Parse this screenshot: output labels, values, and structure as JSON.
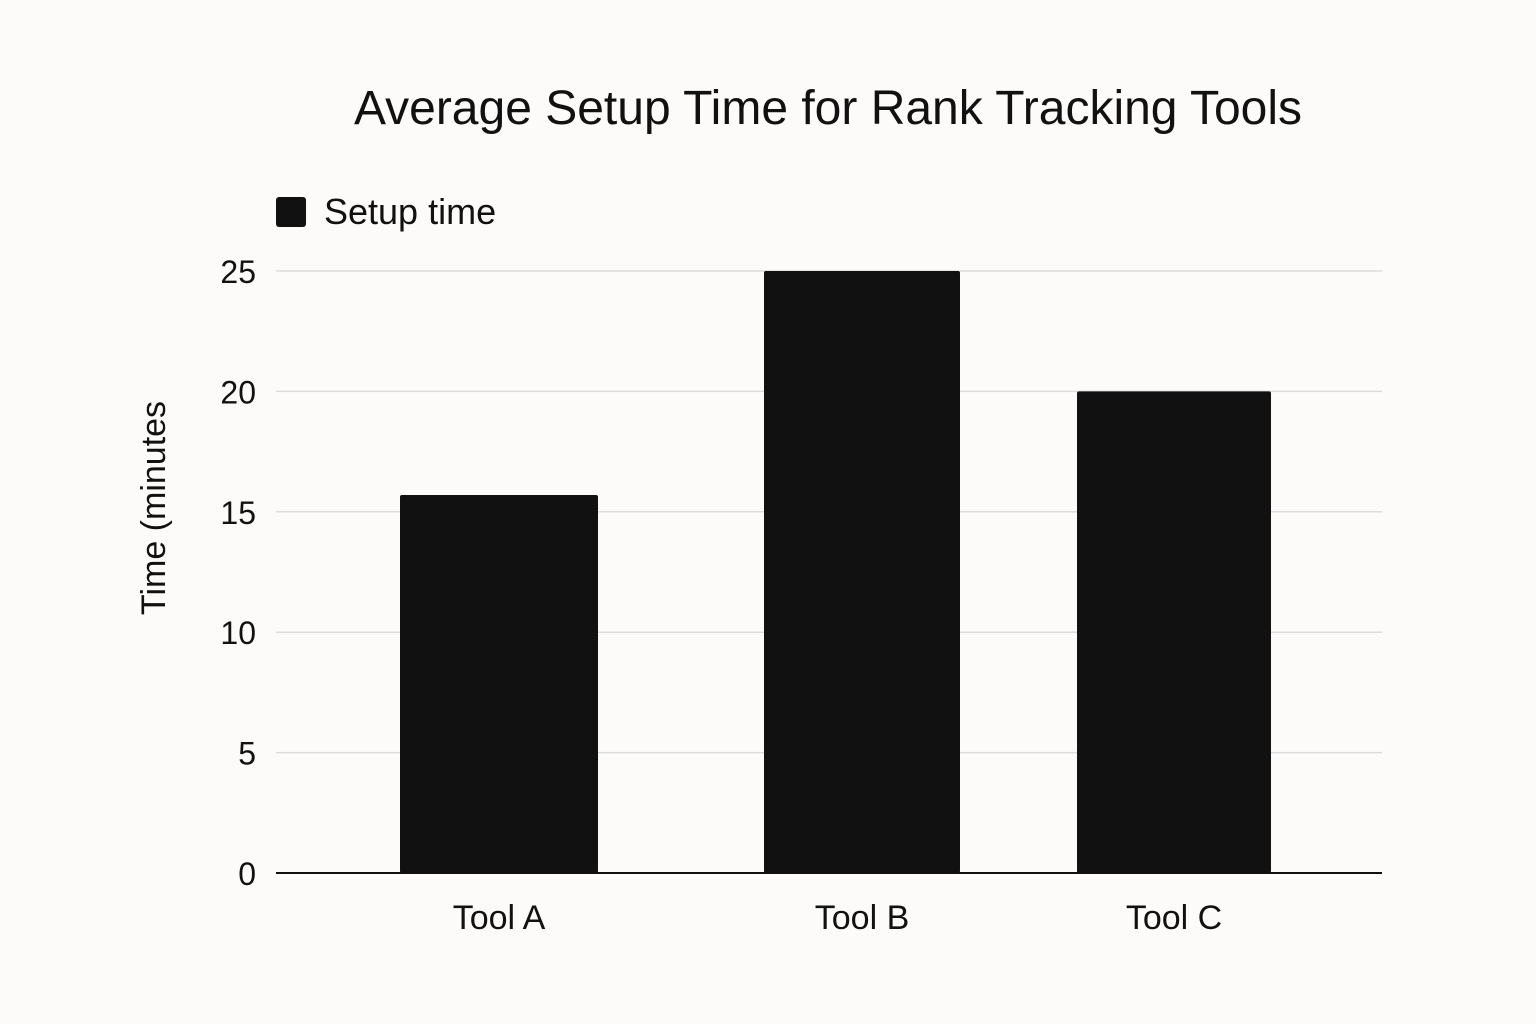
{
  "chart_data": {
    "type": "bar",
    "title": "Average Setup Time for Rank Tracking Tools",
    "xlabel": "",
    "ylabel": "Time (minutes",
    "categories": [
      "Tool A",
      "Tool B",
      "Tool C"
    ],
    "series": [
      {
        "name": "Setup time",
        "values": [
          15.7,
          25,
          20
        ]
      }
    ],
    "ylim": [
      0,
      25
    ],
    "yticks": [
      0,
      5,
      10,
      15,
      20,
      25
    ],
    "grid": true,
    "legend_position": "top-left"
  },
  "colors": {
    "background": "#fcfbf9",
    "bar": "#111111",
    "grid": "#dcdcdc",
    "axis": "#111111",
    "text": "#111111"
  }
}
